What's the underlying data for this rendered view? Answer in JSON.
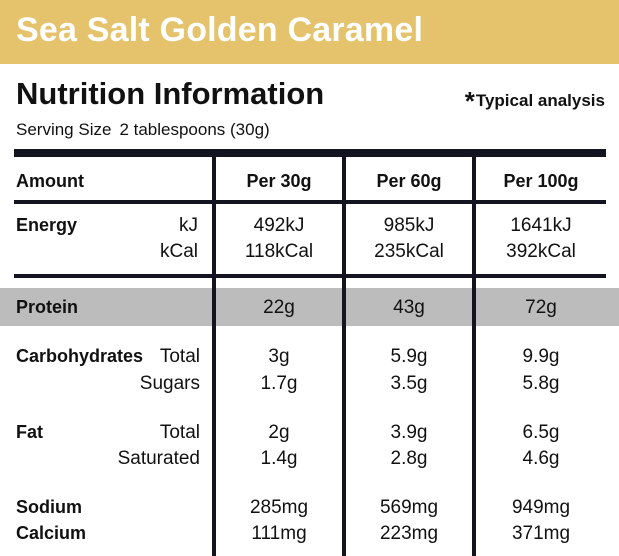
{
  "product_title": "Sea Salt Golden Caramel",
  "heading": "Nutrition Information",
  "typical_star": "*",
  "typical_text": "Typical analysis",
  "serving_label": "Serving Size",
  "serving_value": "2 tablespoons (30g)",
  "columns": {
    "amount": "Amount",
    "per30": "Per 30g",
    "per60": "Per 60g",
    "per100": "Per 100g"
  },
  "energy": {
    "label": "Energy",
    "kj_unit": "kJ",
    "kcal_unit": "kCal",
    "kj": [
      "492kJ",
      "985kJ",
      "1641kJ"
    ],
    "kcal": [
      "118kCal",
      "235kCal",
      "392kCal"
    ]
  },
  "protein": {
    "label": "Protein",
    "values": [
      "22g",
      "43g",
      "72g"
    ]
  },
  "carbohydrates": {
    "label": "Carbohydrates",
    "total_label": "Total",
    "sugars_label": "Sugars",
    "total": [
      "3g",
      "5.9g",
      "9.9g"
    ],
    "sugars": [
      "1.7g",
      "3.5g",
      "5.8g"
    ]
  },
  "fat": {
    "label": "Fat",
    "total_label": "Total",
    "saturated_label": "Saturated",
    "total": [
      "2g",
      "3.9g",
      "6.5g"
    ],
    "saturated": [
      "1.4g",
      "2.8g",
      "4.6g"
    ]
  },
  "sodium": {
    "label": "Sodium",
    "values": [
      "285mg",
      "569mg",
      "949mg"
    ]
  },
  "calcium": {
    "label": "Calcium",
    "values": [
      "111mg",
      "223mg",
      "371mg"
    ]
  },
  "colors": {
    "banner": "#e5c36d",
    "rule": "#141420",
    "protein_band": "#bdbcbd"
  }
}
